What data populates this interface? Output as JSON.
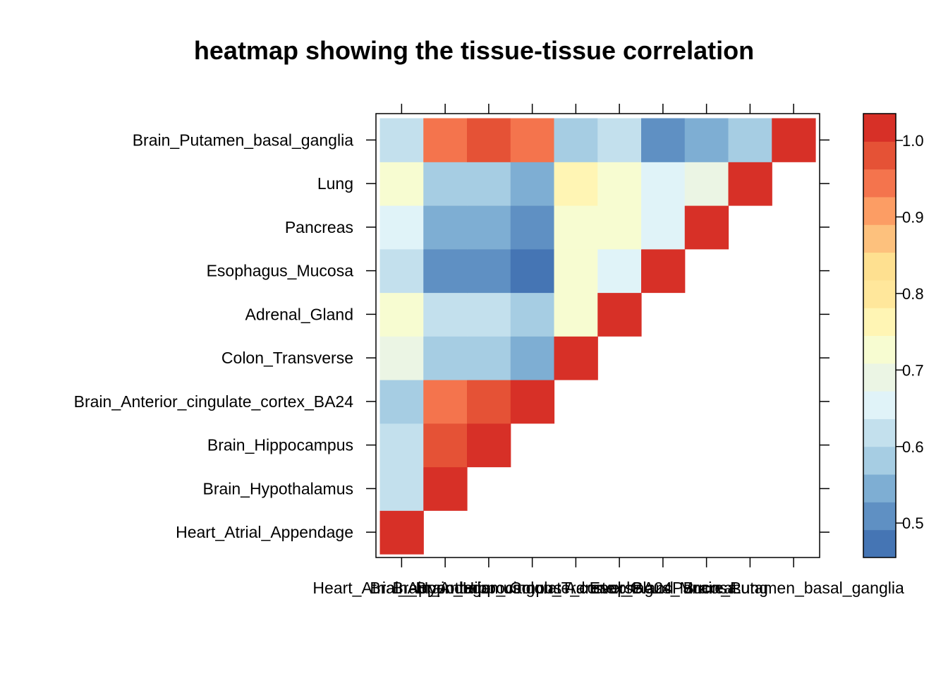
{
  "chart_data": {
    "type": "heatmap",
    "title": "heatmap showing the tissue-tissue correlation",
    "xlabel": "",
    "ylabel": "",
    "x_labels": [
      "Heart_Atrial_Appendage",
      "Brain_Hypothalamus",
      "Brain_Hippocampus",
      "Brain_Anterior_cingulate_cortex_BA24",
      "Colon_Transverse",
      "Adrenal_Gland",
      "Esophagus_Mucosa",
      "Pancreas",
      "Lung",
      "Brain_Putamen_basal_ganglia"
    ],
    "y_labels": [
      "Heart_Atrial_Appendage",
      "Brain_Hypothalamus",
      "Brain_Hippocampus",
      "Brain_Anterior_cingulate_cortex_BA24",
      "Colon_Transverse",
      "Adrenal_Gland",
      "Esophagus_Mucosa",
      "Pancreas",
      "Lung",
      "Brain_Putamen_basal_ganglia"
    ],
    "values": [
      [
        1.0,
        null,
        null,
        null,
        null,
        null,
        null,
        null,
        null,
        null
      ],
      [
        0.62,
        1.0,
        null,
        null,
        null,
        null,
        null,
        null,
        null,
        null
      ],
      [
        0.62,
        0.97,
        1.0,
        null,
        null,
        null,
        null,
        null,
        null,
        null
      ],
      [
        0.58,
        0.93,
        0.97,
        1.0,
        null,
        null,
        null,
        null,
        null,
        null
      ],
      [
        0.69,
        0.58,
        0.58,
        0.54,
        1.0,
        null,
        null,
        null,
        null,
        null
      ],
      [
        0.73,
        0.62,
        0.62,
        0.58,
        0.73,
        1.0,
        null,
        null,
        null,
        null
      ],
      [
        0.62,
        0.5,
        0.5,
        0.46,
        0.73,
        0.66,
        1.0,
        null,
        null,
        null
      ],
      [
        0.66,
        0.54,
        0.54,
        0.5,
        0.73,
        0.73,
        0.66,
        1.0,
        null,
        null
      ],
      [
        0.73,
        0.58,
        0.58,
        0.54,
        0.77,
        0.73,
        0.66,
        0.69,
        1.0,
        null
      ],
      [
        0.62,
        0.93,
        0.97,
        0.93,
        0.58,
        0.62,
        0.5,
        0.54,
        0.58,
        1.0
      ]
    ],
    "colorbar": {
      "min": 0.455,
      "max": 1.035,
      "ticks": [
        0.5,
        0.6,
        0.7,
        0.8,
        0.9,
        1.0
      ],
      "tick_labels": [
        "0.5",
        "0.6",
        "0.7",
        "0.8",
        "0.9",
        "1.0"
      ],
      "colors": [
        "#4575b4",
        "#5f90c3",
        "#7eaed3",
        "#a6cde3",
        "#c3e0ed",
        "#e0f3f8",
        "#ebf5e4",
        "#f7fcd1",
        "#fff5b4",
        "#ffe79b",
        "#fee090",
        "#fdc17d",
        "#fc9d64",
        "#f4744d",
        "#e55236",
        "#d73027"
      ]
    }
  }
}
